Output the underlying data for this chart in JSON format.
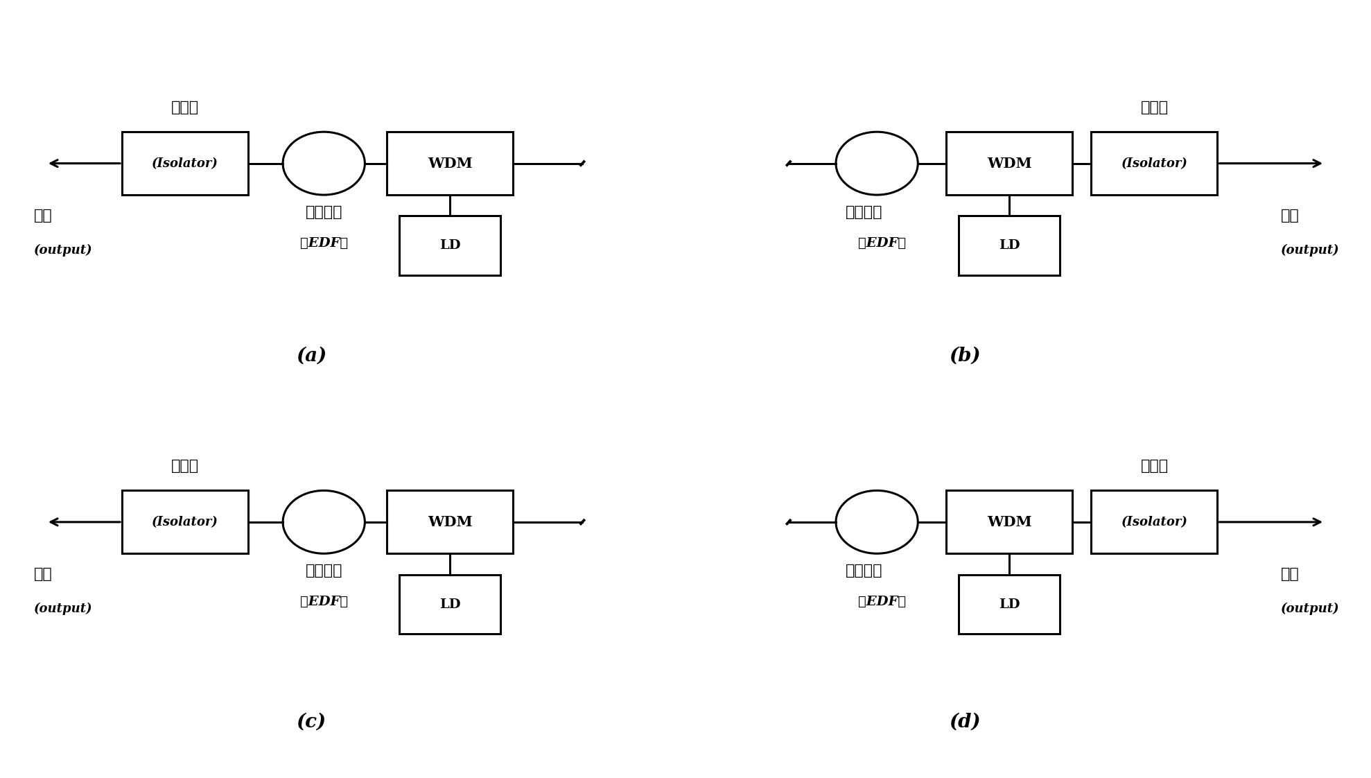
{
  "bg_color": "#ffffff",
  "lw": 2.0,
  "diagrams": [
    "a",
    "b",
    "c",
    "d"
  ]
}
